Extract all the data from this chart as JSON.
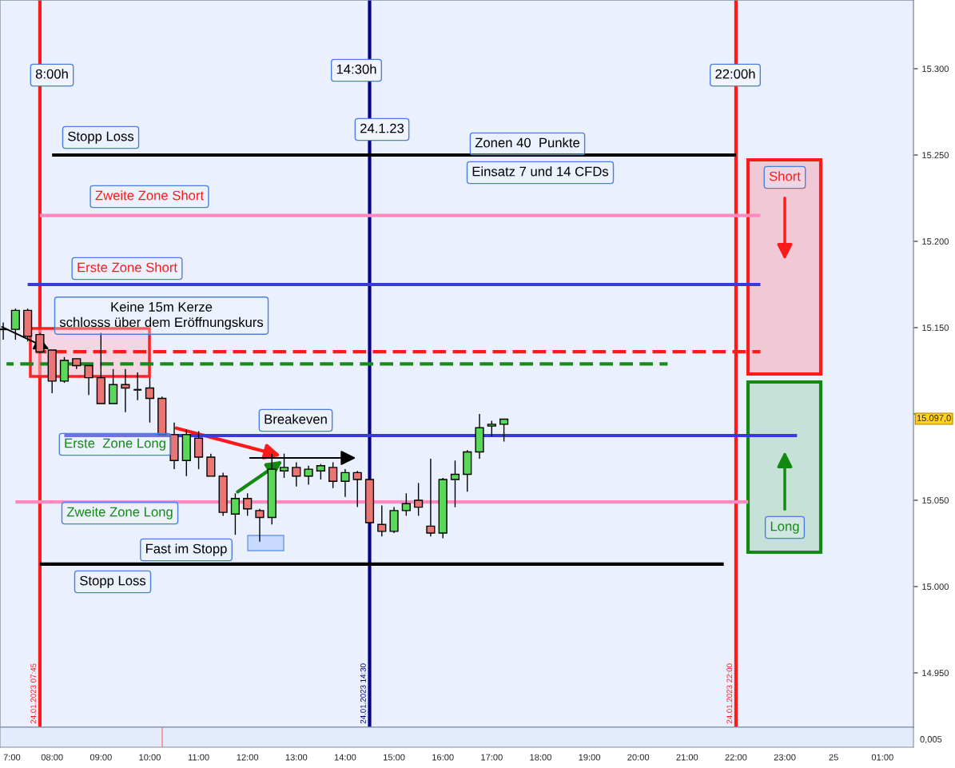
{
  "chart_data": {
    "type": "candlestick",
    "x": [
      "2023-01-24T07:00",
      "2023-01-24T07:15",
      "2023-01-24T07:30",
      "2023-01-24T07:45",
      "2023-01-24T08:00",
      "2023-01-24T08:15",
      "2023-01-24T08:30",
      "2023-01-24T08:45",
      "2023-01-24T09:00",
      "2023-01-24T09:15",
      "2023-01-24T09:30",
      "2023-01-24T09:45",
      "2023-01-24T10:00",
      "2023-01-24T10:15",
      "2023-01-24T10:30",
      "2023-01-24T10:45",
      "2023-01-24T11:00",
      "2023-01-24T11:15",
      "2023-01-24T11:30",
      "2023-01-24T11:45",
      "2023-01-24T12:00",
      "2023-01-24T12:15",
      "2023-01-24T12:30",
      "2023-01-24T12:45",
      "2023-01-24T13:00",
      "2023-01-24T13:15",
      "2023-01-24T13:30",
      "2023-01-24T13:45",
      "2023-01-24T14:00",
      "2023-01-24T14:15",
      "2023-01-24T14:30",
      "2023-01-24T14:45",
      "2023-01-24T15:00",
      "2023-01-24T15:15",
      "2023-01-24T15:30",
      "2023-01-24T15:45",
      "2023-01-24T16:00",
      "2023-01-24T16:15",
      "2023-01-24T16:30",
      "2023-01-24T16:45",
      "2023-01-24T17:00",
      "2023-01-24T17:15"
    ],
    "ohlc": [
      [
        15149,
        15153,
        15143,
        15149
      ],
      [
        15149,
        15161,
        15143,
        15160
      ],
      [
        15160,
        15161,
        15142,
        15145
      ],
      [
        15146,
        15147,
        15135,
        15136
      ],
      [
        15137,
        15137,
        15112,
        15119
      ],
      [
        15119,
        15133,
        15118,
        15131
      ],
      [
        15132,
        15132,
        15126,
        15128
      ],
      [
        15128,
        15128,
        15111,
        15121
      ],
      [
        15121,
        15147,
        15106,
        15106
      ],
      [
        15106,
        15126,
        15106,
        15117
      ],
      [
        15117,
        15126,
        15101,
        15115
      ],
      [
        15114,
        15124,
        15108,
        15114
      ],
      [
        15115,
        15121,
        15095,
        15109
      ],
      [
        15109,
        15110,
        15088,
        15088
      ],
      [
        15088,
        15095,
        15068,
        15073
      ],
      [
        15073,
        15091,
        15064,
        15088
      ],
      [
        15086,
        15090,
        15068,
        15075
      ],
      [
        15075,
        15077,
        15064,
        15064
      ],
      [
        15064,
        15066,
        15041,
        15043
      ],
      [
        15042,
        15054,
        15030,
        15051
      ],
      [
        15051,
        15054,
        15041,
        15045
      ],
      [
        15044,
        15045,
        15026,
        15040
      ],
      [
        15040,
        15077,
        15036,
        15068
      ],
      [
        15067,
        15077,
        15063,
        15069
      ],
      [
        15069,
        15072,
        15058,
        15064
      ],
      [
        15064,
        15070,
        15059,
        15068
      ],
      [
        15067,
        15071,
        15062,
        15070
      ],
      [
        15069,
        15072,
        15057,
        15061
      ],
      [
        15061,
        15068,
        15052,
        15066
      ],
      [
        15066,
        15067,
        15046,
        15062
      ],
      [
        15062,
        15062,
        15037,
        15037
      ],
      [
        15036,
        15047,
        15029,
        15032
      ],
      [
        15032,
        15046,
        15031,
        15044
      ],
      [
        15044,
        15054,
        15041,
        15048
      ],
      [
        15050,
        15060,
        15041,
        15046
      ],
      [
        15035,
        15074,
        15029,
        15031
      ],
      [
        15031,
        15063,
        15028,
        15062
      ],
      [
        15062,
        15073,
        15046,
        15065
      ],
      [
        15065,
        15079,
        15055,
        15078
      ],
      [
        15078,
        15100,
        15074,
        15092
      ],
      [
        15093,
        15096,
        15087,
        15094
      ],
      [
        15094,
        15097,
        15084,
        15097
      ]
    ],
    "series": [
      {
        "type": "line",
        "x": [
          "2023-01-24T08:00",
          "2023-01-24T22:00"
        ],
        "values": [
          15250,
          15250
        ],
        "color": "#000000",
        "line_style": "solid"
      },
      {
        "type": "line",
        "x": [
          "2023-01-24T07:45",
          "2023-01-24T22:30"
        ],
        "values": [
          15215,
          15215
        ],
        "color": "#ff88c0",
        "line_style": "solid"
      },
      {
        "type": "line",
        "x": [
          "2023-01-24T07:30",
          "2023-01-24T22:30"
        ],
        "values": [
          15175,
          15175
        ],
        "color": "#3a3ad8",
        "line_style": "solid"
      },
      {
        "type": "line",
        "x": [
          "2023-01-24T07:40",
          "2023-01-24T22:30"
        ],
        "values": [
          15136,
          15136
        ],
        "color": "#ff1a1a",
        "line_style": "dashed"
      },
      {
        "type": "line",
        "x": [
          "2023-01-24T07:04",
          "2023-01-24T20:36"
        ],
        "values": [
          15129,
          15129
        ],
        "color": "#1a8a1a",
        "line_style": "dashed"
      },
      {
        "type": "line",
        "x": [
          "2023-01-24T08:15",
          "2023-01-24T23:15"
        ],
        "values": [
          15087.5,
          15087.5
        ],
        "color": "#3a3ad8",
        "line_style": "solid"
      },
      {
        "type": "line",
        "x": [
          "2023-01-24T07:15",
          "2023-01-24T22:15"
        ],
        "values": [
          15049,
          15049
        ],
        "color": "#ff88c0",
        "line_style": "solid"
      },
      {
        "type": "line",
        "x": [
          "2023-01-24T07:45",
          "2023-01-24T21:45"
        ],
        "values": [
          15013,
          15013
        ],
        "color": "#000000",
        "line_style": "solid"
      }
    ],
    "ref_lines": [
      {
        "axis": "x",
        "value": "2023-01-24T07:45",
        "label": "24.01.2023 07:45",
        "color": "#ff1a1a"
      },
      {
        "axis": "x",
        "value": "2023-01-24T14:30",
        "label": "24.01.2023 14:30",
        "color": "#00008b"
      },
      {
        "axis": "x",
        "value": "2023-01-24T22:00",
        "label": "24.01.2023 22:00",
        "color": "#ff1a1a"
      }
    ],
    "annotations": [
      "8:00h",
      "14:30h",
      "22:00h",
      "24.1.23",
      "Zonen 40  Punkte",
      "Einsatz 7 und 14 CFDs",
      "Stopp Loss",
      "Zweite Zone Short",
      "Erste Zone Short",
      "Keine 15m Kerze\nschlosss über dem Eröffnungskurs",
      "Breakeven",
      "Erste  Zone Long",
      "Zweite Zone Long",
      "Fast im Stopp",
      "Stopp Loss",
      "Short",
      "Long",
      "15.097,0",
      "0,005"
    ],
    "xlim": [
      "2023-01-24T06:56",
      "2023-01-25T01:38"
    ],
    "ylim": [
      14918.5,
      15339.8
    ],
    "xticks": [
      {
        "value": "2023-01-24T07:00",
        "label": "7:00"
      },
      {
        "value": "2023-01-24T08:00",
        "label": "08:00"
      },
      {
        "value": "2023-01-24T09:00",
        "label": "09:00"
      },
      {
        "value": "2023-01-24T10:00",
        "label": "10:00"
      },
      {
        "value": "2023-01-24T11:00",
        "label": "11:00"
      },
      {
        "value": "2023-01-24T12:00",
        "label": "12:00"
      },
      {
        "value": "2023-01-24T13:00",
        "label": "13:00"
      },
      {
        "value": "2023-01-24T14:00",
        "label": "14:00"
      },
      {
        "value": "2023-01-24T15:00",
        "label": "15:00"
      },
      {
        "value": "2023-01-24T16:00",
        "label": "16:00"
      },
      {
        "value": "2023-01-24T17:00",
        "label": "17:00"
      },
      {
        "value": "2023-01-24T18:00",
        "label": "18:00"
      },
      {
        "value": "2023-01-24T19:00",
        "label": "19:00"
      },
      {
        "value": "2023-01-24T20:00",
        "label": "20:00"
      },
      {
        "value": "2023-01-24T21:00",
        "label": "21:00"
      },
      {
        "value": "2023-01-24T22:00",
        "label": "22:00"
      },
      {
        "value": "2023-01-24T23:00",
        "label": "23:00"
      },
      {
        "value": "2023-01-25",
        "label": "25"
      },
      {
        "value": "2023-01-25T01:00",
        "label": "01:00"
      }
    ],
    "yticks": [
      {
        "value": 14950,
        "label": "14.950"
      },
      {
        "value": 15000,
        "label": "15.000"
      },
      {
        "value": 15050,
        "label": "15.050"
      },
      {
        "value": 15100,
        "label": null
      },
      {
        "value": 15150,
        "label": "15.150"
      },
      {
        "value": 15200,
        "label": "15.200"
      },
      {
        "value": 15250,
        "label": "15.250"
      },
      {
        "value": 15300,
        "label": "15.300"
      }
    ],
    "grid": false,
    "legend": false
  }
}
